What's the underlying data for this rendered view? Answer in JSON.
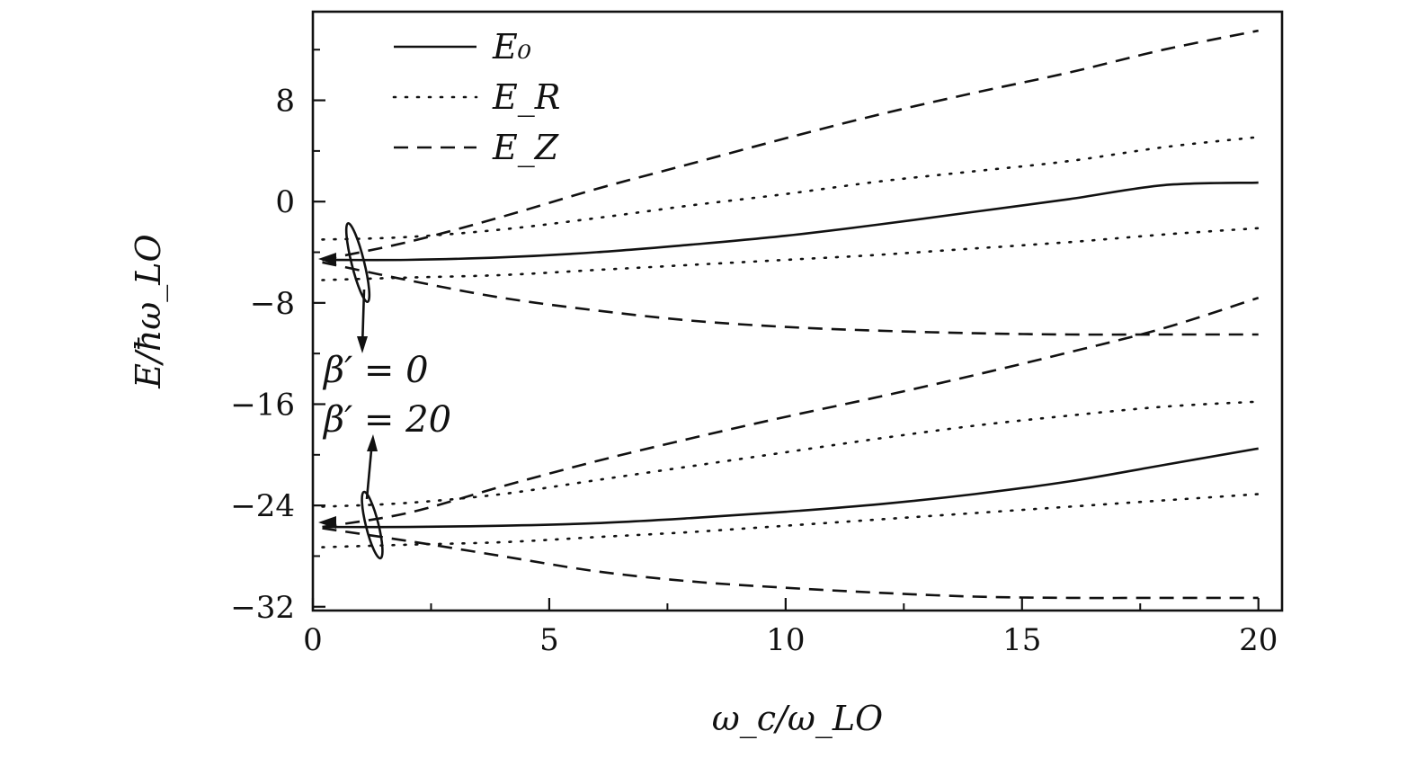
{
  "chart_data": {
    "type": "line",
    "xlabel": "ω_c/ω_LO",
    "ylabel": "E/ħω_LO",
    "xlim": [
      0,
      20.5
    ],
    "ylim": [
      -32.3,
      15
    ],
    "xticks": [
      0,
      5,
      10,
      15,
      20
    ],
    "yticks": [
      -32,
      -24,
      -16,
      -8,
      0,
      8
    ],
    "xtick_labels": [
      "0",
      "5",
      "10",
      "15",
      "20"
    ],
    "ytick_labels": [
      "−32",
      "−24",
      "−16",
      "−8",
      "0",
      "8"
    ],
    "grid": false,
    "legend_position": "top-left",
    "legend": [
      {
        "label": "E₀",
        "style": "solid"
      },
      {
        "label": "E_R",
        "style": "dotted"
      },
      {
        "label": "E_Z",
        "style": "dashed"
      }
    ],
    "annotations": [
      "β′ = 0",
      "β′ = 20"
    ],
    "series": [
      {
        "group": "β′ = 0",
        "style": "solid",
        "x": [
          0.2,
          2,
          4,
          6,
          8,
          10,
          12,
          14,
          16,
          18,
          20
        ],
        "y": [
          -4.6,
          -4.6,
          -4.4,
          -4.0,
          -3.4,
          -2.7,
          -1.8,
          -0.8,
          0.2,
          1.3,
          1.5
        ]
      },
      {
        "group": "β′ = 0",
        "style": "dotted",
        "x": [
          0.2,
          2,
          4,
          6,
          8,
          10,
          12,
          14,
          16,
          18,
          20
        ],
        "y": [
          -3.0,
          -2.8,
          -2.2,
          -1.3,
          -0.3,
          0.6,
          1.6,
          2.4,
          3.2,
          4.3,
          5.1
        ]
      },
      {
        "group": "β′ = 0",
        "style": "dotted",
        "x": [
          0.2,
          2,
          4,
          6,
          8,
          10,
          12,
          14,
          16,
          18,
          20
        ],
        "y": [
          -6.2,
          -6.0,
          -5.8,
          -5.4,
          -5.0,
          -4.6,
          -4.2,
          -3.7,
          -3.2,
          -2.6,
          -2.1
        ]
      },
      {
        "group": "β′ = 0",
        "style": "dashed",
        "x": [
          0.2,
          2,
          4,
          6,
          8,
          10,
          12,
          14,
          16,
          18,
          20
        ],
        "y": [
          -4.6,
          -3.2,
          -1.2,
          1.0,
          3.0,
          5.0,
          6.9,
          8.6,
          10.2,
          12.0,
          13.5
        ]
      },
      {
        "group": "β′ = 0",
        "style": "dashed",
        "x": [
          0.2,
          2,
          4,
          6,
          8,
          10,
          12,
          14,
          16,
          18,
          20
        ],
        "y": [
          -4.8,
          -6.2,
          -7.6,
          -8.6,
          -9.4,
          -9.9,
          -10.2,
          -10.4,
          -10.5,
          -10.5,
          -10.5
        ]
      },
      {
        "group": "β′ = 20",
        "style": "solid",
        "x": [
          0.2,
          2,
          4,
          6,
          8,
          10,
          12,
          14,
          16,
          18,
          20
        ],
        "y": [
          -25.7,
          -25.7,
          -25.6,
          -25.4,
          -25.0,
          -24.5,
          -23.9,
          -23.1,
          -22.1,
          -20.8,
          -19.5
        ]
      },
      {
        "group": "β′ = 20",
        "style": "dotted",
        "x": [
          0.2,
          2,
          4,
          6,
          8,
          10,
          12,
          14,
          16,
          18,
          20
        ],
        "y": [
          -24.1,
          -23.8,
          -23.1,
          -22.0,
          -20.9,
          -19.8,
          -18.7,
          -17.7,
          -16.9,
          -16.2,
          -15.8
        ]
      },
      {
        "group": "β′ = 20",
        "style": "dotted",
        "x": [
          0.2,
          2,
          4,
          6,
          8,
          10,
          12,
          14,
          16,
          18,
          20
        ],
        "y": [
          -27.3,
          -27.1,
          -26.9,
          -26.5,
          -26.1,
          -25.6,
          -25.1,
          -24.6,
          -24.1,
          -23.6,
          -23.1
        ]
      },
      {
        "group": "β′ = 20",
        "style": "dashed",
        "x": [
          0.2,
          2,
          4,
          6,
          8,
          10,
          12,
          14,
          16,
          18,
          20
        ],
        "y": [
          -25.7,
          -24.6,
          -22.5,
          -20.5,
          -18.7,
          -17.0,
          -15.4,
          -13.7,
          -11.9,
          -10.0,
          -7.6
        ]
      },
      {
        "group": "β′ = 20",
        "style": "dashed",
        "x": [
          0.2,
          2,
          4,
          6,
          8,
          10,
          12,
          14,
          16,
          18,
          20
        ],
        "y": [
          -25.8,
          -26.8,
          -28.0,
          -29.2,
          -30.0,
          -30.5,
          -30.9,
          -31.2,
          -31.3,
          -31.3,
          -31.3
        ]
      }
    ]
  }
}
